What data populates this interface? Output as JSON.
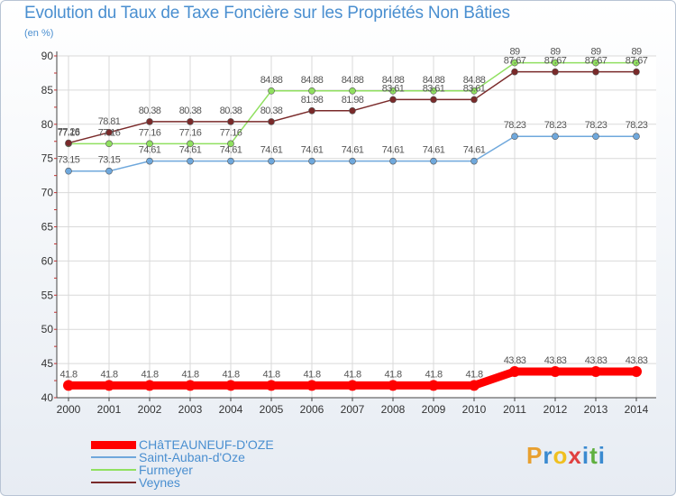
{
  "title": "Evolution du Taux de Taxe Foncière sur les Propriétés Non Bâties",
  "subtitle": "(en %)",
  "logo": {
    "text": "Proxiti",
    "letters": [
      {
        "ch": "P",
        "color": "#e8a030"
      },
      {
        "ch": "r",
        "color": "#3a8ad0"
      },
      {
        "ch": "o",
        "color": "#f0c020"
      },
      {
        "ch": "x",
        "color": "#e04040"
      },
      {
        "ch": "i",
        "color": "#3a8ad0"
      },
      {
        "ch": "t",
        "color": "#60b040"
      },
      {
        "ch": "i",
        "color": "#3a8ad0"
      }
    ]
  },
  "chart_data": {
    "type": "line",
    "x": [
      2000,
      2001,
      2002,
      2003,
      2004,
      2005,
      2006,
      2007,
      2008,
      2009,
      2010,
      2011,
      2012,
      2013,
      2014
    ],
    "ylim": [
      40,
      90
    ],
    "yticks": [
      40,
      45,
      50,
      55,
      60,
      65,
      70,
      75,
      80,
      85,
      90
    ],
    "grid": true,
    "legend_position": "bottom-left",
    "series": [
      {
        "name": "CHâTEAUNEUF-D'OZE",
        "color": "#ff0000",
        "values": [
          41.8,
          41.8,
          41.8,
          41.8,
          41.8,
          41.8,
          41.8,
          41.8,
          41.8,
          41.8,
          41.8,
          43.83,
          43.83,
          43.83,
          43.83
        ],
        "labels": [
          "41.8",
          "41.8",
          "41.8",
          "41.8",
          "41.8",
          "41.8",
          "41.8",
          "41.8",
          "41.8",
          "41.8",
          "41.8",
          "43.83",
          "43.83",
          "43.83",
          "43.83"
        ]
      },
      {
        "name": "Saint-Auban-d'Oze",
        "color": "#6fa8dc",
        "values": [
          73.15,
          73.15,
          74.61,
          74.61,
          74.61,
          74.61,
          74.61,
          74.61,
          74.61,
          74.61,
          74.61,
          78.23,
          78.23,
          78.23,
          78.23
        ],
        "labels": [
          "73.15",
          "73.15",
          "74.61",
          "74.61",
          "74.61",
          "74.61",
          "74.61",
          "74.61",
          "74.61",
          "74.61",
          "74.61",
          "78.23",
          "78.23",
          "78.23",
          "78.23"
        ]
      },
      {
        "name": "Furmeyer",
        "color": "#90e060",
        "values": [
          77.16,
          77.16,
          77.16,
          77.16,
          77.16,
          84.88,
          84.88,
          84.88,
          84.88,
          84.88,
          84.88,
          89,
          89,
          89,
          89
        ],
        "labels": [
          "77.16",
          "77.16",
          "77.16",
          "77.16",
          "77.16",
          "84.88",
          "84.88",
          "84.88",
          "84.88",
          "84.88",
          "84.88",
          "89",
          "89",
          "89",
          "89"
        ]
      },
      {
        "name": "Veynes",
        "color": "#7a2a2a",
        "values": [
          77.26,
          78.81,
          80.38,
          80.38,
          80.38,
          80.38,
          81.98,
          81.98,
          83.61,
          83.61,
          83.61,
          87.67,
          87.67,
          87.67,
          87.67
        ],
        "labels": [
          "77.26",
          "78.81",
          "80.38",
          "80.38",
          "80.38",
          "80.38",
          "81.98",
          "81.98",
          "83.61",
          "83.61",
          "83.61",
          "87.67",
          "87.67",
          "87.67",
          "87.67"
        ]
      }
    ]
  }
}
